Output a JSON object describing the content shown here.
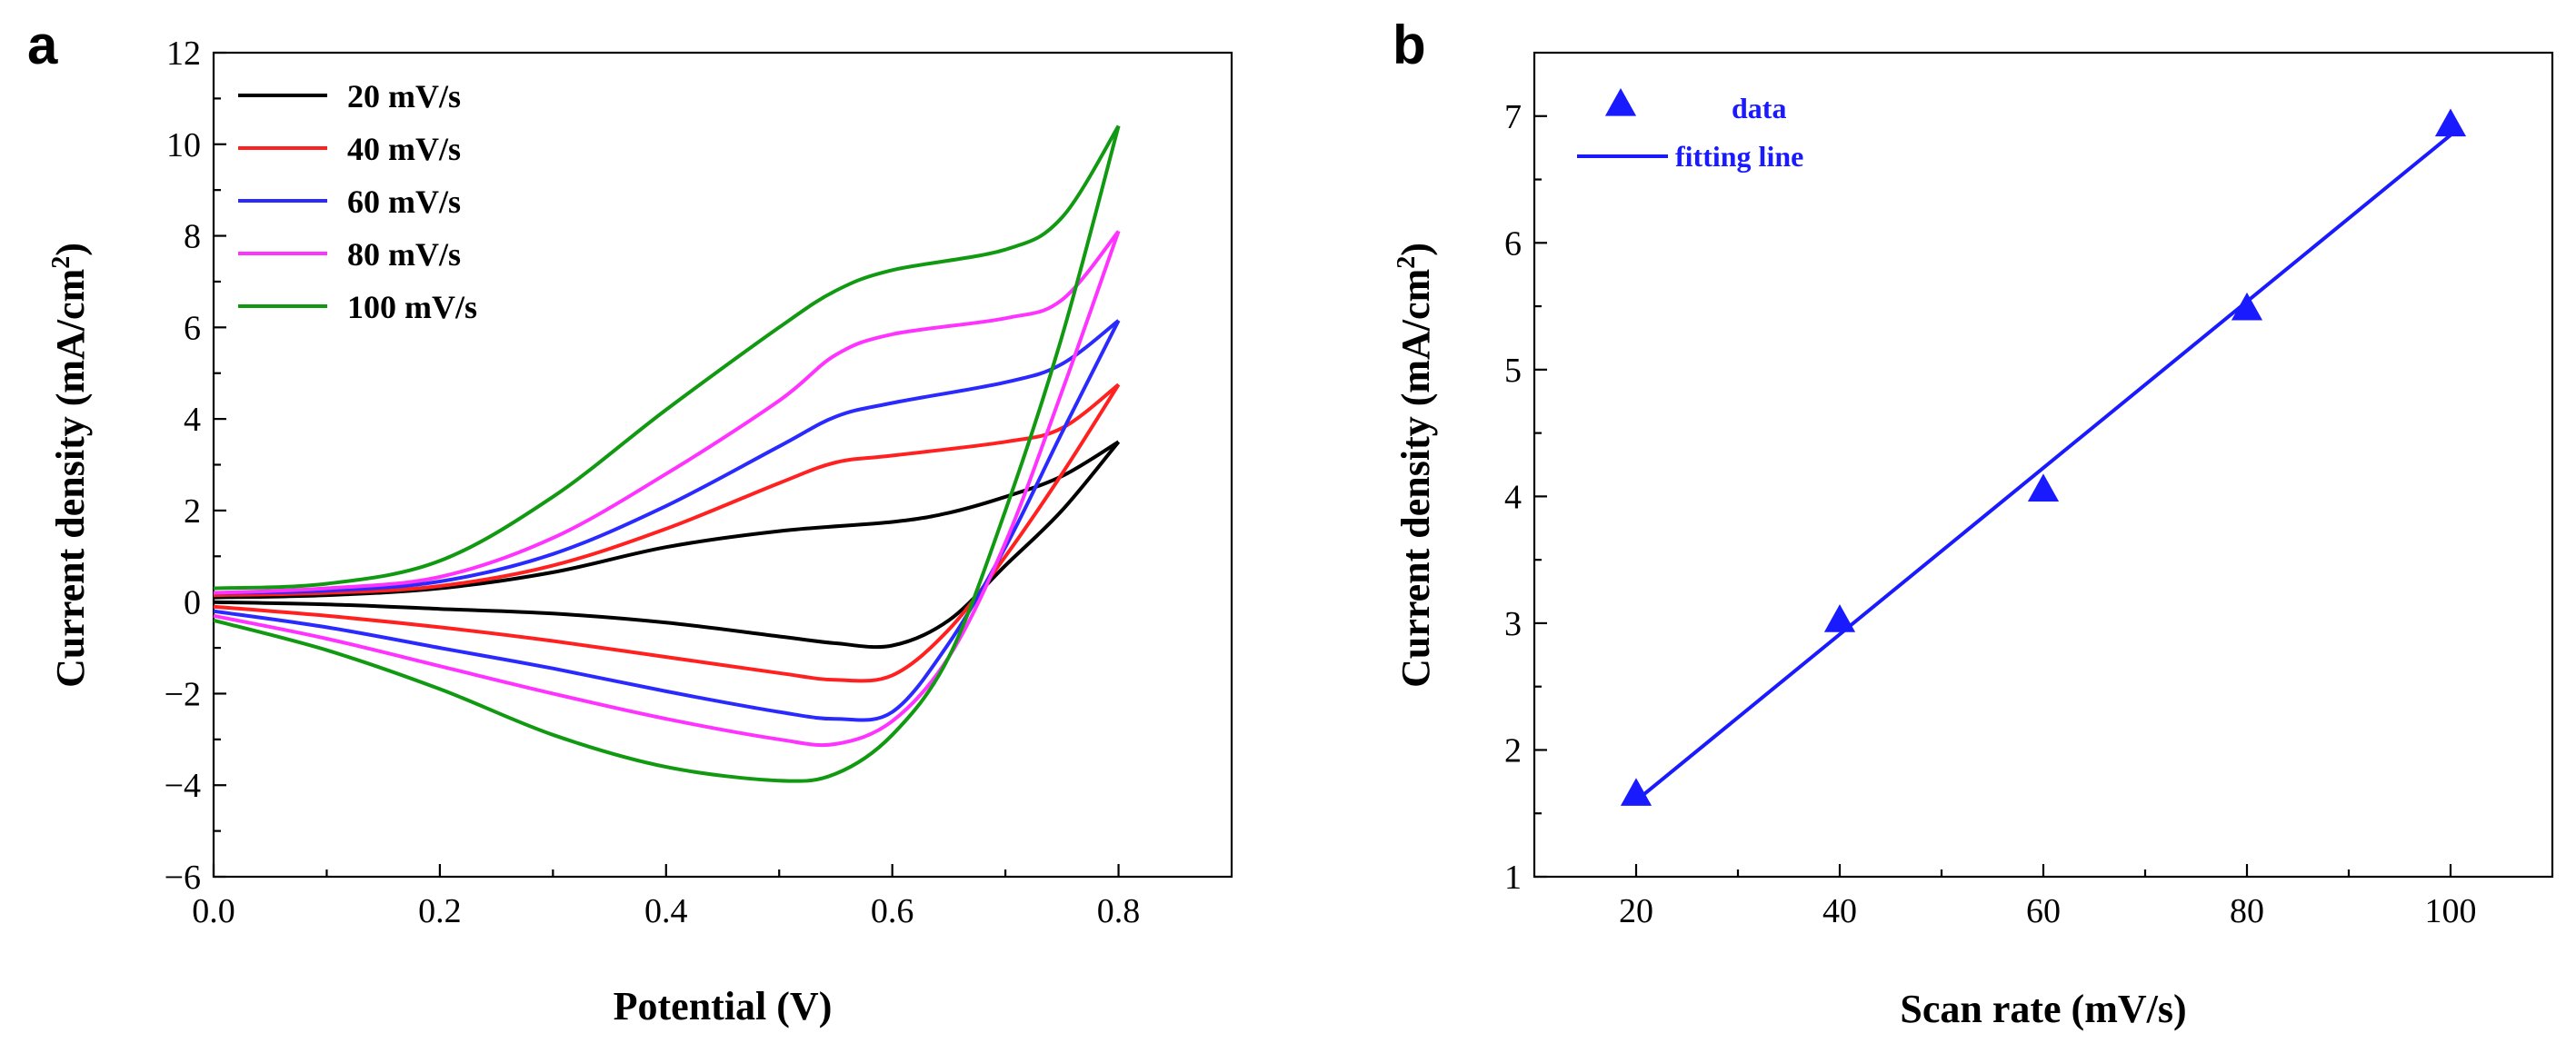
{
  "chart_data": [
    {
      "panel": "a",
      "type": "line",
      "xlabel": "Potential (V)",
      "ylabel_main": "Current density (mA/cm",
      "ylabel_sup": "2",
      "ylabel_close": ")",
      "xlim": [
        0.0,
        0.9
      ],
      "ylim": [
        -6,
        12
      ],
      "xticks": [
        0.0,
        0.2,
        0.4,
        0.6,
        0.8
      ],
      "xtick_labels": [
        "0.0",
        "0.2",
        "0.4",
        "0.6",
        "0.8"
      ],
      "yticks": [
        -6,
        -4,
        -2,
        0,
        2,
        4,
        6,
        8,
        10,
        12
      ],
      "ytick_labels": [
        "−6",
        "−4",
        "−2",
        "0",
        "2",
        "4",
        "6",
        "8",
        "10",
        "12"
      ],
      "legend_position": "top-left",
      "series": [
        {
          "name": "20 mV/s",
          "color": "#000000",
          "upper": [
            [
              0.0,
              0.1
            ],
            [
              0.1,
              0.15
            ],
            [
              0.2,
              0.3
            ],
            [
              0.3,
              0.65
            ],
            [
              0.4,
              1.2
            ],
            [
              0.5,
              1.55
            ],
            [
              0.6,
              1.75
            ],
            [
              0.65,
              1.95
            ],
            [
              0.7,
              2.3
            ],
            [
              0.75,
              2.75
            ],
            [
              0.8,
              3.5
            ]
          ],
          "lower": [
            [
              0.8,
              3.5
            ],
            [
              0.75,
              2.0
            ],
            [
              0.7,
              0.8
            ],
            [
              0.65,
              -0.4
            ],
            [
              0.6,
              -0.95
            ],
            [
              0.55,
              -0.9
            ],
            [
              0.5,
              -0.75
            ],
            [
              0.4,
              -0.45
            ],
            [
              0.3,
              -0.25
            ],
            [
              0.2,
              -0.15
            ],
            [
              0.1,
              -0.05
            ],
            [
              0.0,
              0.0
            ]
          ]
        },
        {
          "name": "40 mV/s",
          "color": "#ff2020",
          "upper": [
            [
              0.0,
              0.15
            ],
            [
              0.1,
              0.2
            ],
            [
              0.2,
              0.35
            ],
            [
              0.3,
              0.8
            ],
            [
              0.4,
              1.6
            ],
            [
              0.5,
              2.6
            ],
            [
              0.55,
              3.05
            ],
            [
              0.6,
              3.2
            ],
            [
              0.7,
              3.5
            ],
            [
              0.75,
              3.8
            ],
            [
              0.8,
              4.75
            ]
          ],
          "lower": [
            [
              0.8,
              4.75
            ],
            [
              0.75,
              2.8
            ],
            [
              0.7,
              1.0
            ],
            [
              0.65,
              -0.6
            ],
            [
              0.6,
              -1.6
            ],
            [
              0.55,
              -1.7
            ],
            [
              0.5,
              -1.55
            ],
            [
              0.4,
              -1.2
            ],
            [
              0.3,
              -0.85
            ],
            [
              0.2,
              -0.55
            ],
            [
              0.1,
              -0.3
            ],
            [
              0.0,
              -0.1
            ]
          ]
        },
        {
          "name": "60 mV/s",
          "color": "#2a2aff",
          "upper": [
            [
              0.0,
              0.2
            ],
            [
              0.1,
              0.25
            ],
            [
              0.2,
              0.45
            ],
            [
              0.3,
              1.05
            ],
            [
              0.4,
              2.1
            ],
            [
              0.5,
              3.4
            ],
            [
              0.55,
              4.05
            ],
            [
              0.6,
              4.35
            ],
            [
              0.7,
              4.8
            ],
            [
              0.75,
              5.2
            ],
            [
              0.8,
              6.15
            ]
          ],
          "lower": [
            [
              0.8,
              6.15
            ],
            [
              0.75,
              3.7
            ],
            [
              0.7,
              1.2
            ],
            [
              0.65,
              -0.9
            ],
            [
              0.6,
              -2.4
            ],
            [
              0.55,
              -2.55
            ],
            [
              0.5,
              -2.4
            ],
            [
              0.4,
              -1.95
            ],
            [
              0.3,
              -1.45
            ],
            [
              0.2,
              -1.0
            ],
            [
              0.1,
              -0.55
            ],
            [
              0.0,
              -0.2
            ]
          ]
        },
        {
          "name": "80 mV/s",
          "color": "#ff33ff",
          "upper": [
            [
              0.0,
              0.2
            ],
            [
              0.1,
              0.3
            ],
            [
              0.2,
              0.55
            ],
            [
              0.3,
              1.4
            ],
            [
              0.4,
              2.8
            ],
            [
              0.5,
              4.4
            ],
            [
              0.55,
              5.4
            ],
            [
              0.6,
              5.85
            ],
            [
              0.7,
              6.2
            ],
            [
              0.75,
              6.6
            ],
            [
              0.8,
              8.1
            ]
          ],
          "lower": [
            [
              0.8,
              8.1
            ],
            [
              0.75,
              4.6
            ],
            [
              0.7,
              1.3
            ],
            [
              0.65,
              -1.2
            ],
            [
              0.6,
              -2.6
            ],
            [
              0.55,
              -3.1
            ],
            [
              0.5,
              -3.0
            ],
            [
              0.4,
              -2.55
            ],
            [
              0.3,
              -2.0
            ],
            [
              0.2,
              -1.4
            ],
            [
              0.1,
              -0.8
            ],
            [
              0.0,
              -0.3
            ]
          ]
        },
        {
          "name": "100 mV/s",
          "color": "#119911",
          "upper": [
            [
              0.0,
              0.3
            ],
            [
              0.1,
              0.4
            ],
            [
              0.2,
              0.9
            ],
            [
              0.3,
              2.3
            ],
            [
              0.4,
              4.2
            ],
            [
              0.5,
              6.0
            ],
            [
              0.55,
              6.8
            ],
            [
              0.6,
              7.25
            ],
            [
              0.7,
              7.7
            ],
            [
              0.75,
              8.4
            ],
            [
              0.8,
              10.4
            ]
          ],
          "lower": [
            [
              0.8,
              10.4
            ],
            [
              0.75,
              5.8
            ],
            [
              0.7,
              2.0
            ],
            [
              0.65,
              -1.2
            ],
            [
              0.6,
              -2.9
            ],
            [
              0.55,
              -3.75
            ],
            [
              0.5,
              -3.9
            ],
            [
              0.4,
              -3.6
            ],
            [
              0.3,
              -2.9
            ],
            [
              0.2,
              -1.9
            ],
            [
              0.1,
              -1.05
            ],
            [
              0.0,
              -0.4
            ]
          ]
        }
      ]
    },
    {
      "panel": "b",
      "type": "scatter",
      "xlabel": "Scan rate (mV/s)",
      "ylabel_main": "Current density (mA/cm",
      "ylabel_sup": "2",
      "ylabel_close": ")",
      "xlim": [
        10,
        110
      ],
      "ylim": [
        1,
        7.5
      ],
      "xticks": [
        20,
        40,
        60,
        80,
        100
      ],
      "xtick_labels": [
        "20",
        "40",
        "60",
        "80",
        "100"
      ],
      "yticks": [
        1,
        2,
        3,
        4,
        5,
        6,
        7
      ],
      "ytick_labels": [
        "1",
        "2",
        "3",
        "4",
        "5",
        "6",
        "7"
      ],
      "legend_position": "top-left",
      "color": "#1a1aff",
      "data_label": "data",
      "fit_label": "fitting line",
      "points": [
        [
          20,
          1.65
        ],
        [
          40,
          3.02
        ],
        [
          60,
          4.05
        ],
        [
          80,
          5.48
        ],
        [
          100,
          6.93
        ]
      ],
      "fit": [
        [
          20,
          1.6
        ],
        [
          100,
          6.85
        ]
      ]
    }
  ]
}
